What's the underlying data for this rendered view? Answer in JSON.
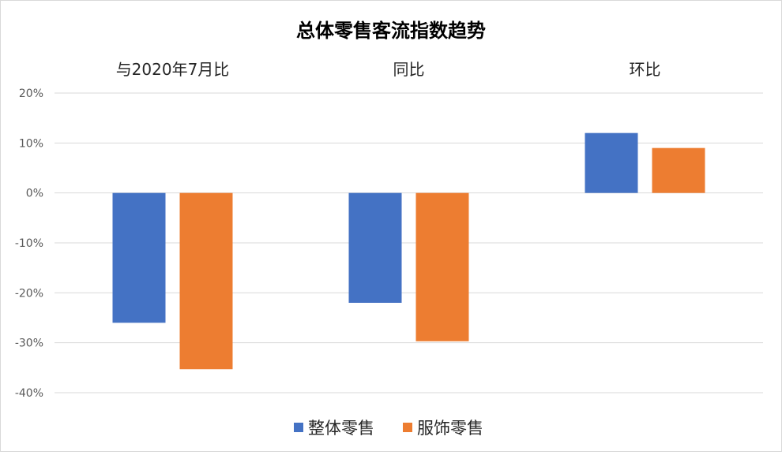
{
  "chart_data": {
    "type": "bar",
    "title": "总体零售客流指数趋势",
    "categories": [
      "与2020年7月比",
      "同比",
      "环比"
    ],
    "series": [
      {
        "name": "整体零售",
        "color": "#4472C4",
        "values": [
          -26,
          -22,
          12
        ]
      },
      {
        "name": "服饰零售",
        "color": "#ED7D31",
        "values": [
          -35.3,
          -29.7,
          9
        ]
      }
    ],
    "ylim": [
      -40,
      20
    ],
    "yticks": [
      20,
      10,
      0,
      -10,
      -20,
      -30,
      -40
    ],
    "ytick_format": "%",
    "grid": true,
    "category_labels_position": "top",
    "legend_position": "bottom",
    "gridline_color": "#d9d9d9"
  }
}
